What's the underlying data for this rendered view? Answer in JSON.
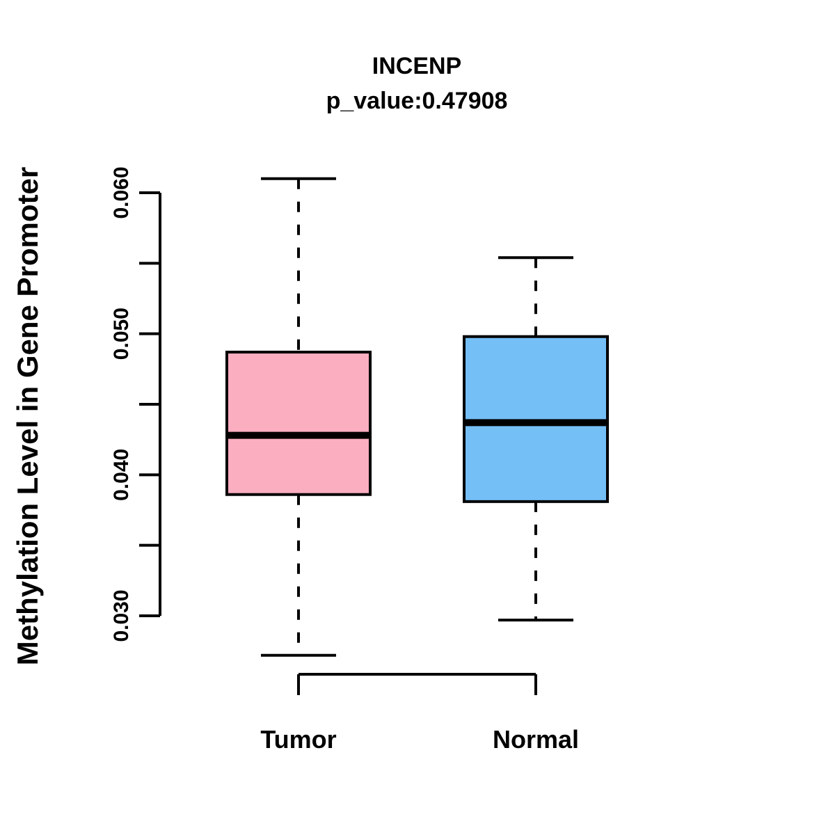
{
  "title": "INCENP",
  "subtitle": "p_value:0.47908",
  "y_axis_label": "Methylation Level in Gene Promoter",
  "p_value": "0.47908",
  "gene": "INCENP",
  "colors": {
    "tumor_fill": "#FCAEC1",
    "normal_fill": "#75BFF7",
    "stroke": "#000000",
    "background": "#FFFFFF"
  },
  "chart_data": {
    "type": "boxplot",
    "title": "INCENP",
    "subtitle": "p_value:0.47908",
    "ylabel": "Methylation Level in Gene Promoter",
    "xlabel": "",
    "categories": [
      "Tumor",
      "Normal"
    ],
    "ylim": [
      0.03,
      0.06
    ],
    "y_ticks": [
      0.03,
      0.035,
      0.04,
      0.045,
      0.05,
      0.055,
      0.06
    ],
    "y_tick_labels": [
      {
        "value": 0.03,
        "label": "0.030"
      },
      {
        "value": 0.04,
        "label": "0.040"
      },
      {
        "value": 0.05,
        "label": "0.050"
      },
      {
        "value": 0.06,
        "label": "0.060"
      }
    ],
    "grid": false,
    "legend": "none",
    "whisker_style": "dashed",
    "series": [
      {
        "name": "Tumor",
        "fill": "#FCAEC1",
        "whisker_low": 0.0272,
        "q1": 0.0386,
        "median": 0.0428,
        "q3": 0.0487,
        "whisker_high": 0.061
      },
      {
        "name": "Normal",
        "fill": "#75BFF7",
        "whisker_low": 0.0297,
        "q1": 0.0381,
        "median": 0.0437,
        "q3": 0.0498,
        "whisker_high": 0.0554
      }
    ]
  }
}
